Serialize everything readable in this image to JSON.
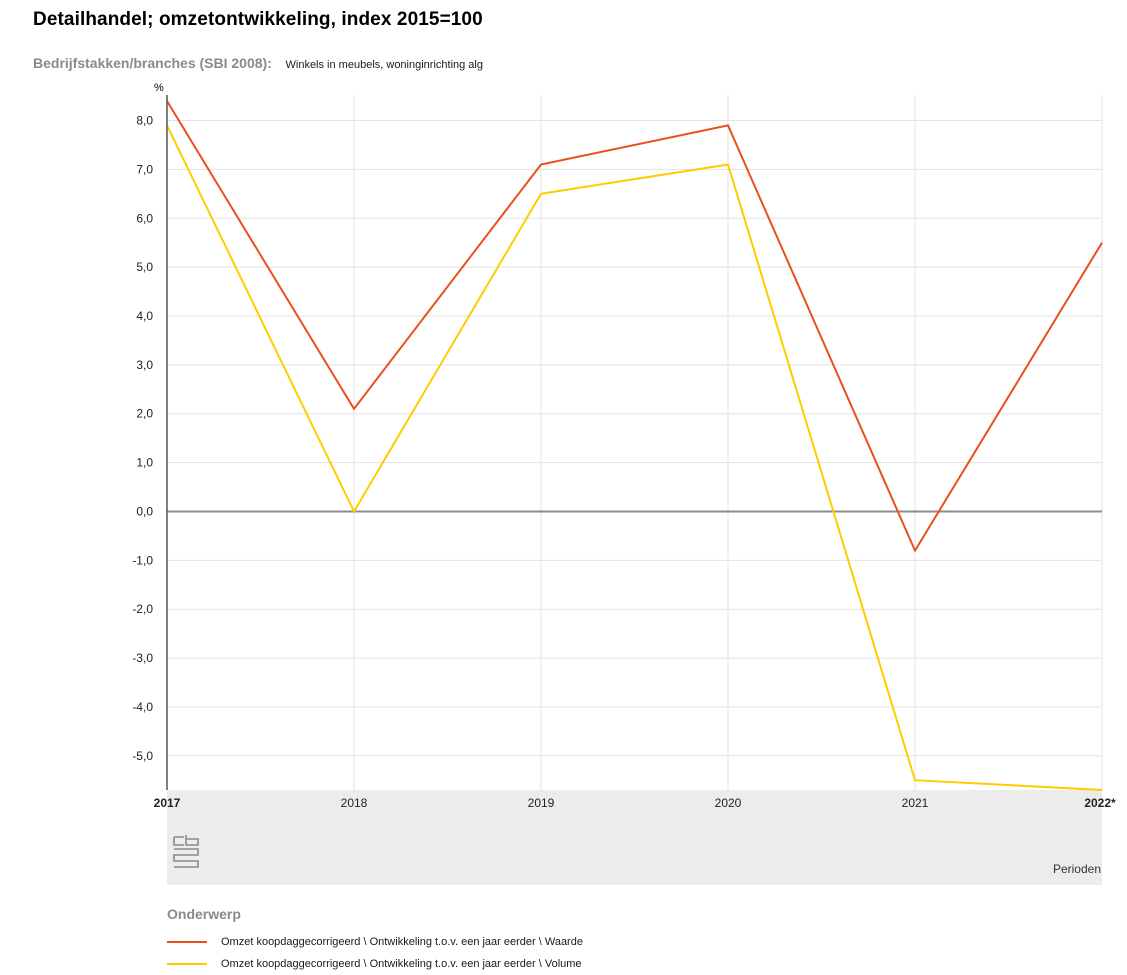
{
  "title": "Detailhandel; omzetontwikkeling, index 2015=100",
  "filter": {
    "label": "Bedrijfstakken/branches (SBI 2008):",
    "value": "Winkels in meubels, woninginrichting alg"
  },
  "colors": {
    "waarde": "#e8501e",
    "volume": "#ffcc00",
    "zero_line": "#8c8c8c",
    "grid": "#e3e3e3",
    "band": "#ececec"
  },
  "logo_icon": "cbs-logo-icon",
  "legend": {
    "title": "Onderwerp",
    "items": [
      "Omzet koopdaggecorrigeerd \\ Ontwikkeling t.o.v. een jaar eerder \\ Waarde",
      "Omzet koopdaggecorrigeerd \\ Ontwikkeling t.o.v. een jaar eerder \\ Volume"
    ]
  },
  "chart_data": {
    "type": "line",
    "categories": [
      "2017",
      "2018",
      "2019",
      "2020",
      "2021",
      "2022*"
    ],
    "series": [
      {
        "name": "Omzet koopdaggecorrigeerd \\ Ontwikkeling t.o.v. een jaar eerder \\ Waarde",
        "values": [
          8.4,
          2.1,
          7.1,
          7.9,
          -0.8,
          5.5
        ]
      },
      {
        "name": "Omzet koopdaggecorrigeerd \\ Ontwikkeling t.o.v. een jaar eerder \\ Volume",
        "values": [
          7.9,
          0.0,
          6.5,
          7.1,
          -5.5,
          -5.7
        ]
      }
    ],
    "ylabel": "%",
    "xlabel": "Perioden",
    "ylim": [
      -5.7,
      8.4
    ],
    "yticks": [
      8.0,
      7.0,
      6.0,
      5.0,
      4.0,
      3.0,
      2.0,
      1.0,
      0.0,
      -1.0,
      -2.0,
      -3.0,
      -4.0,
      -5.0
    ],
    "ytick_labels": [
      "8,0",
      "7,0",
      "6,0",
      "5,0",
      "4,0",
      "3,0",
      "2,0",
      "1,0",
      "0,0",
      "-1,0",
      "-2,0",
      "-3,0",
      "-4,0",
      "-5,0"
    ],
    "grid": true,
    "legend_position": "bottom"
  }
}
